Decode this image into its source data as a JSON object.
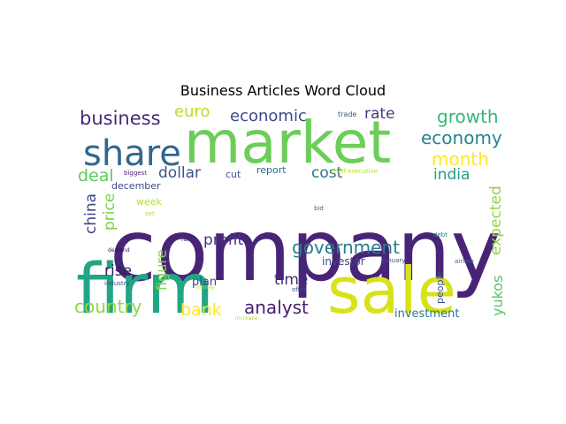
{
  "chart_data": {
    "type": "wordcloud",
    "title": "Business Articles Word Cloud",
    "background": "#ffffff",
    "words": [
      {
        "text": "company",
        "weight": 1.0,
        "color": "#482476"
      },
      {
        "text": "market",
        "weight": 0.74,
        "color": "#6ccd5a"
      },
      {
        "text": "firm",
        "weight": 0.72,
        "color": "#21a685"
      },
      {
        "text": "sale",
        "weight": 0.7,
        "color": "#d8e219"
      },
      {
        "text": "share",
        "weight": 0.38,
        "color": "#31688e"
      },
      {
        "text": "business",
        "weight": 0.24,
        "color": "#482878"
      },
      {
        "text": "economic",
        "weight": 0.2,
        "color": "#3e4a89"
      },
      {
        "text": "euro",
        "weight": 0.19,
        "color": "#b5de2b"
      },
      {
        "text": "rate",
        "weight": 0.18,
        "color": "#443983"
      },
      {
        "text": "growth",
        "weight": 0.21,
        "color": "#35b779"
      },
      {
        "text": "economy",
        "weight": 0.2,
        "color": "#26828e"
      },
      {
        "text": "month",
        "weight": 0.2,
        "color": "#fde725"
      },
      {
        "text": "deal",
        "weight": 0.19,
        "color": "#5ec962"
      },
      {
        "text": "dollar",
        "weight": 0.17,
        "color": "#3b528b"
      },
      {
        "text": "cost",
        "weight": 0.17,
        "color": "#2c728e"
      },
      {
        "text": "india",
        "weight": 0.16,
        "color": "#1f9e89"
      },
      {
        "text": "china",
        "weight": 0.18,
        "color": "#414487"
      },
      {
        "text": "price",
        "weight": 0.18,
        "color": "#7ad151"
      },
      {
        "text": "expected",
        "weight": 0.18,
        "color": "#90d743"
      },
      {
        "text": "profit",
        "weight": 0.17,
        "color": "#46337e"
      },
      {
        "text": "government",
        "weight": 0.2,
        "color": "#287c8e"
      },
      {
        "text": "figure",
        "weight": 0.16,
        "color": "#84d44b"
      },
      {
        "text": "rise",
        "weight": 0.17,
        "color": "#2d1e5f"
      },
      {
        "text": "investor",
        "weight": 0.12,
        "color": "#3e4989"
      },
      {
        "text": "time",
        "weight": 0.17,
        "color": "#472d7b"
      },
      {
        "text": "country",
        "weight": 0.2,
        "color": "#8fd744"
      },
      {
        "text": "bank",
        "weight": 0.19,
        "color": "#fde725"
      },
      {
        "text": "analyst",
        "weight": 0.2,
        "color": "#481f70"
      },
      {
        "text": "investment",
        "weight": 0.13,
        "color": "#2a788e"
      },
      {
        "text": "yukos",
        "weight": 0.15,
        "color": "#52c569"
      },
      {
        "text": "people",
        "weight": 0.1,
        "color": "#3b528b"
      },
      {
        "text": "plan",
        "weight": 0.12,
        "color": "#404688"
      },
      {
        "text": "week",
        "weight": 0.1,
        "color": "#addc30"
      },
      {
        "text": "report",
        "weight": 0.1,
        "color": "#31688e"
      },
      {
        "text": "cut",
        "weight": 0.09,
        "color": "#3b528b"
      },
      {
        "text": "december",
        "weight": 0.09,
        "color": "#3e4989"
      },
      {
        "text": "trade",
        "weight": 0.06,
        "color": "#3b528b"
      },
      {
        "text": "biggest",
        "weight": 0.06,
        "color": "#482475"
      },
      {
        "text": "chief executive",
        "weight": 0.06,
        "color": "#b5de2b"
      },
      {
        "text": "bid",
        "weight": 0.06,
        "color": "#31688e"
      },
      {
        "text": "set",
        "weight": 0.06,
        "color": "#b5de2b"
      },
      {
        "text": "demand",
        "weight": 0.05,
        "color": "#440154"
      },
      {
        "text": "fall",
        "weight": 0.06,
        "color": "#472c7a"
      },
      {
        "text": "debt",
        "weight": 0.06,
        "color": "#2a788e"
      },
      {
        "text": "january",
        "weight": 0.06,
        "color": "#3e4a89"
      },
      {
        "text": "airline",
        "weight": 0.06,
        "color": "#31688e"
      },
      {
        "text": "industry",
        "weight": 0.06,
        "color": "#3b528b"
      },
      {
        "text": "money",
        "weight": 0.05,
        "color": "#b5de2b"
      },
      {
        "text": "offer",
        "weight": 0.06,
        "color": "#3e4989"
      },
      {
        "text": "increase",
        "weight": 0.05,
        "color": "#b5de2b"
      }
    ]
  }
}
